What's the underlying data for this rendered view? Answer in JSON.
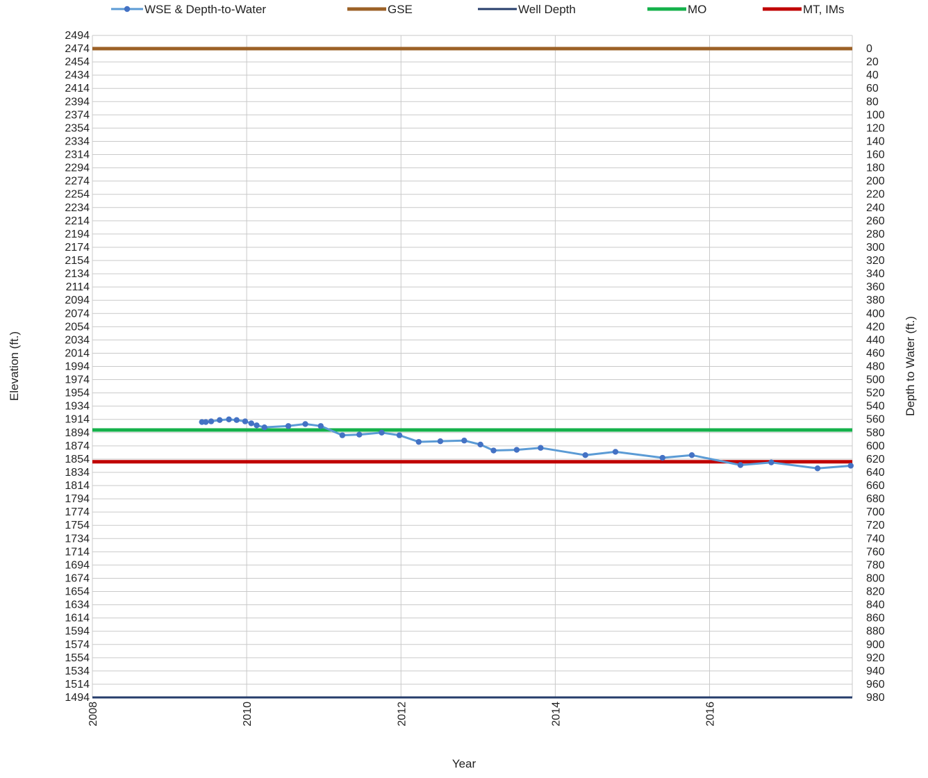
{
  "chart_data": {
    "type": "line",
    "title": "",
    "xlabel": "Year",
    "ylabel": "Elevation (ft.)",
    "y2label": "Depth to Water (ft.)",
    "xlim": [
      2008,
      2017.85
    ],
    "ylim": [
      1494,
      2494
    ],
    "y2lim": [
      1000,
      0
    ],
    "x_ticks": [
      2008,
      2010,
      2012,
      2014,
      2016
    ],
    "x_tick_labels": [
      "2008",
      "2010",
      "2012",
      "2014",
      "2016"
    ],
    "y_ticks": [
      2494,
      2474,
      2454,
      2434,
      2414,
      2394,
      2374,
      2354,
      2334,
      2314,
      2294,
      2274,
      2254,
      2234,
      2214,
      2194,
      2174,
      2154,
      2134,
      2114,
      2094,
      2074,
      2054,
      2034,
      2014,
      1994,
      1974,
      1954,
      1934,
      1914,
      1894,
      1874,
      1854,
      1834,
      1814,
      1794,
      1774,
      1754,
      1734,
      1714,
      1694,
      1674,
      1654,
      1634,
      1614,
      1594,
      1574,
      1554,
      1534,
      1514,
      1494
    ],
    "y2_tick_labels": [
      "0",
      "20",
      "40",
      "60",
      "80",
      "100",
      "120",
      "140",
      "160",
      "180",
      "200",
      "220",
      "240",
      "260",
      "280",
      "300",
      "320",
      "340",
      "360",
      "380",
      "400",
      "420",
      "440",
      "460",
      "480",
      "500",
      "520",
      "540",
      "560",
      "580",
      "600",
      "620",
      "640",
      "660",
      "680",
      "700",
      "720",
      "740",
      "760",
      "780",
      "800",
      "820",
      "840",
      "860",
      "880",
      "900",
      "920",
      "940",
      "960",
      "980"
    ],
    "grid": true,
    "legend_position": "top",
    "series": [
      {
        "name": "WSE & Depth-to-Water",
        "kind": "line-markers",
        "color": "#5b9bd5",
        "marker_color": "#4472c4",
        "x": [
          2009.42,
          2009.47,
          2009.54,
          2009.65,
          2009.77,
          2009.87,
          2009.98,
          2010.06,
          2010.13,
          2010.23,
          2010.54,
          2010.76,
          2010.96,
          2011.24,
          2011.46,
          2011.75,
          2011.98,
          2012.23,
          2012.51,
          2012.82,
          2013.03,
          2013.2,
          2013.5,
          2013.81,
          2014.39,
          2014.78,
          2015.39,
          2015.77,
          2016.4,
          2016.8,
          2017.4,
          2017.83
        ],
        "y": [
          1910,
          1910,
          1911,
          1913,
          1914,
          1913,
          1911,
          1908,
          1905,
          1902,
          1904,
          1907,
          1904,
          1890,
          1891,
          1894,
          1890,
          1880,
          1881,
          1882,
          1876,
          1867,
          1868,
          1871,
          1860,
          1865,
          1856,
          1860,
          1845,
          1849,
          1840,
          1844
        ]
      },
      {
        "name": "GSE",
        "kind": "hline",
        "color": "#9c6127",
        "y": 2474
      },
      {
        "name": "Well Depth",
        "kind": "hline",
        "color": "#263d6b",
        "y": 1494
      },
      {
        "name": "MO",
        "kind": "hline",
        "color": "#14b14b",
        "y": 1898
      },
      {
        "name": "MT, IMs",
        "kind": "hline",
        "color": "#c00000",
        "y": 1850
      }
    ]
  }
}
